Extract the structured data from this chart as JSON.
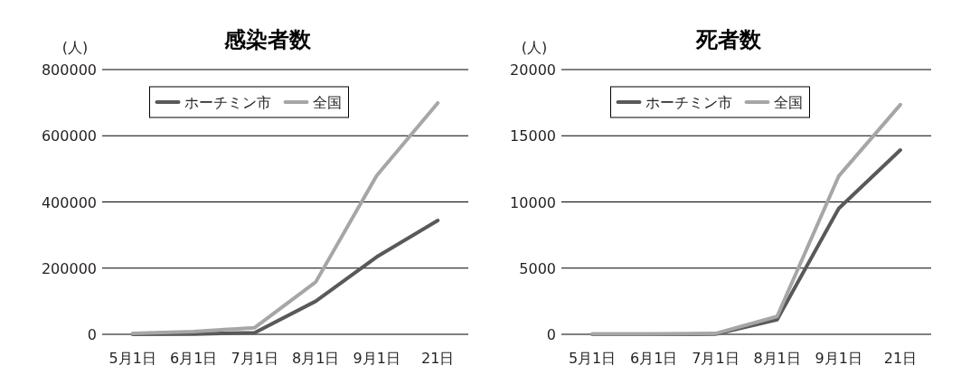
{
  "chart_data": [
    {
      "type": "line",
      "title": "感染者数",
      "ylabel": "(人)",
      "categories": [
        "5月1日",
        "6月1日",
        "7月1日",
        "8月1日",
        "9月1日",
        "21日"
      ],
      "ylim": [
        0,
        800000
      ],
      "yticks": [
        0,
        200000,
        400000,
        600000,
        800000
      ],
      "grid": "y",
      "legend": "top",
      "series": [
        {
          "name": "ホーチミン市",
          "color": "#595959",
          "values": [
            0,
            1000,
            5000,
            100000,
            234000,
            344000
          ]
        },
        {
          "name": "全国",
          "color": "#a6a6a6",
          "values": [
            3000,
            8000,
            20000,
            158000,
            480000,
            699000
          ]
        }
      ]
    },
    {
      "type": "line",
      "title": "死者数",
      "ylabel": "(人)",
      "categories": [
        "5月1日",
        "6月1日",
        "7月1日",
        "8月1日",
        "9月1日",
        "21日"
      ],
      "ylim": [
        0,
        20000
      ],
      "yticks": [
        0,
        5000,
        10000,
        15000,
        20000
      ],
      "grid": "y",
      "legend": "top",
      "series": [
        {
          "name": "ホーチミン市",
          "color": "#595959",
          "values": [
            0,
            0,
            10,
            1110,
            9510,
            13920
          ]
        },
        {
          "name": "全国",
          "color": "#a6a6a6",
          "values": [
            30,
            40,
            60,
            1350,
            11950,
            17350
          ]
        }
      ]
    }
  ]
}
